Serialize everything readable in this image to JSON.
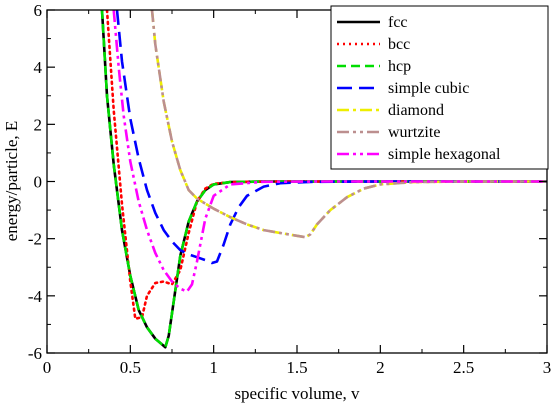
{
  "chart_data": {
    "type": "line",
    "title": "",
    "xlabel": "specific volume, v",
    "ylabel": "energy/particle, E",
    "xlim": [
      0,
      3
    ],
    "ylim": [
      -6,
      6
    ],
    "xticks": [
      0,
      0.5,
      1,
      1.5,
      2,
      2.5,
      3
    ],
    "xtick_labels": [
      "0",
      "0.5",
      "1",
      "1.5",
      "2",
      "2.5",
      "3"
    ],
    "yticks": [
      -6,
      -4,
      -2,
      0,
      2,
      4,
      6
    ],
    "ytick_labels": [
      "-6",
      "-4",
      "-2",
      "0",
      "2",
      "4",
      "6"
    ],
    "grid": false,
    "legend_position": "top-right",
    "series": [
      {
        "name": "fcc",
        "color": "#000000",
        "dash": "solid",
        "x": [
          0.33,
          0.36,
          0.4,
          0.45,
          0.5,
          0.55,
          0.6,
          0.65,
          0.69,
          0.71,
          0.73,
          0.76,
          0.8,
          0.85,
          0.9,
          0.95,
          1.0,
          1.1,
          1.3,
          1.6,
          2.0,
          3.0
        ],
        "y": [
          6.0,
          3.0,
          0.6,
          -1.7,
          -3.3,
          -4.5,
          -5.1,
          -5.5,
          -5.7,
          -5.8,
          -5.4,
          -4.2,
          -2.6,
          -1.4,
          -0.7,
          -0.3,
          -0.1,
          -0.02,
          0.0,
          0.0,
          0.0,
          0.0
        ]
      },
      {
        "name": "bcc",
        "color": "#ff0000",
        "dash": "dot",
        "x": [
          0.36,
          0.4,
          0.45,
          0.5,
          0.53,
          0.57,
          0.6,
          0.65,
          0.7,
          0.75,
          0.8,
          0.85,
          0.9,
          0.95,
          1.0,
          1.1,
          1.3,
          1.6,
          2.0,
          3.0
        ],
        "y": [
          6.0,
          2.5,
          -0.8,
          -3.5,
          -4.8,
          -4.75,
          -4.0,
          -3.55,
          -3.5,
          -3.6,
          -3.1,
          -1.8,
          -0.7,
          -0.25,
          -0.08,
          -0.02,
          0.0,
          0.0,
          0.0,
          0.0
        ]
      },
      {
        "name": "hcp",
        "color": "#00dd00",
        "dash": "dash",
        "x": [
          0.33,
          0.36,
          0.4,
          0.45,
          0.5,
          0.55,
          0.6,
          0.65,
          0.69,
          0.71,
          0.73,
          0.76,
          0.8,
          0.85,
          0.9,
          0.95,
          1.0,
          1.1,
          1.3,
          1.6,
          2.0,
          3.0
        ],
        "y": [
          6.0,
          3.0,
          0.6,
          -1.7,
          -3.3,
          -4.5,
          -5.1,
          -5.5,
          -5.7,
          -5.8,
          -5.4,
          -4.2,
          -2.6,
          -1.4,
          -0.7,
          -0.3,
          -0.1,
          -0.02,
          0.0,
          0.0,
          0.0,
          0.0
        ]
      },
      {
        "name": "simple cubic",
        "color": "#0000ff",
        "dash": "longdash",
        "x": [
          0.42,
          0.45,
          0.5,
          0.55,
          0.6,
          0.65,
          0.7,
          0.75,
          0.8,
          0.85,
          0.9,
          0.95,
          0.99,
          1.02,
          1.06,
          1.1,
          1.15,
          1.2,
          1.3,
          1.4,
          1.6,
          2.0,
          3.0
        ],
        "y": [
          6.0,
          4.2,
          2.2,
          0.8,
          -0.3,
          -1.1,
          -1.7,
          -2.1,
          -2.4,
          -2.55,
          -2.65,
          -2.75,
          -2.85,
          -2.8,
          -2.2,
          -1.5,
          -0.9,
          -0.5,
          -0.18,
          -0.06,
          -0.01,
          0.0,
          0.0
        ]
      },
      {
        "name": "diamond",
        "color": "#eeee00",
        "dash": "dashdot",
        "x": [
          0.63,
          0.65,
          0.7,
          0.75,
          0.8,
          0.85,
          0.9,
          1.0,
          1.1,
          1.2,
          1.3,
          1.4,
          1.5,
          1.55,
          1.58,
          1.62,
          1.7,
          1.8,
          1.9,
          2.0,
          2.2,
          2.5,
          3.0
        ],
        "y": [
          6.0,
          4.8,
          2.8,
          1.4,
          0.4,
          -0.3,
          -0.6,
          -0.95,
          -1.25,
          -1.5,
          -1.7,
          -1.8,
          -1.9,
          -1.95,
          -1.85,
          -1.5,
          -1.0,
          -0.55,
          -0.25,
          -0.1,
          -0.02,
          0.0,
          0.0
        ]
      },
      {
        "name": "wurtzite",
        "color": "#bc8f8f",
        "dash": "dashdotdot",
        "x": [
          0.63,
          0.65,
          0.7,
          0.75,
          0.8,
          0.85,
          0.9,
          1.0,
          1.1,
          1.2,
          1.3,
          1.4,
          1.5,
          1.55,
          1.58,
          1.62,
          1.7,
          1.8,
          1.9,
          2.0,
          2.2,
          2.5,
          3.0
        ],
        "y": [
          6.0,
          4.8,
          2.8,
          1.4,
          0.4,
          -0.3,
          -0.6,
          -0.95,
          -1.25,
          -1.5,
          -1.7,
          -1.8,
          -1.9,
          -1.95,
          -1.85,
          -1.5,
          -1.0,
          -0.55,
          -0.25,
          -0.1,
          -0.02,
          0.0,
          0.0
        ]
      },
      {
        "name": "simple hexagonal",
        "color": "#ff00ff",
        "dash": "dashdotdot",
        "x": [
          0.4,
          0.43,
          0.46,
          0.5,
          0.55,
          0.6,
          0.65,
          0.7,
          0.75,
          0.8,
          0.84,
          0.87,
          0.9,
          0.95,
          1.0,
          1.1,
          1.3,
          1.6,
          2.0,
          3.0
        ],
        "y": [
          6.0,
          4.0,
          2.3,
          0.7,
          -0.7,
          -1.7,
          -2.5,
          -3.1,
          -3.5,
          -3.75,
          -3.85,
          -3.6,
          -2.8,
          -1.3,
          -0.5,
          -0.1,
          -0.01,
          0.0,
          0.0,
          0.0
        ]
      }
    ]
  }
}
